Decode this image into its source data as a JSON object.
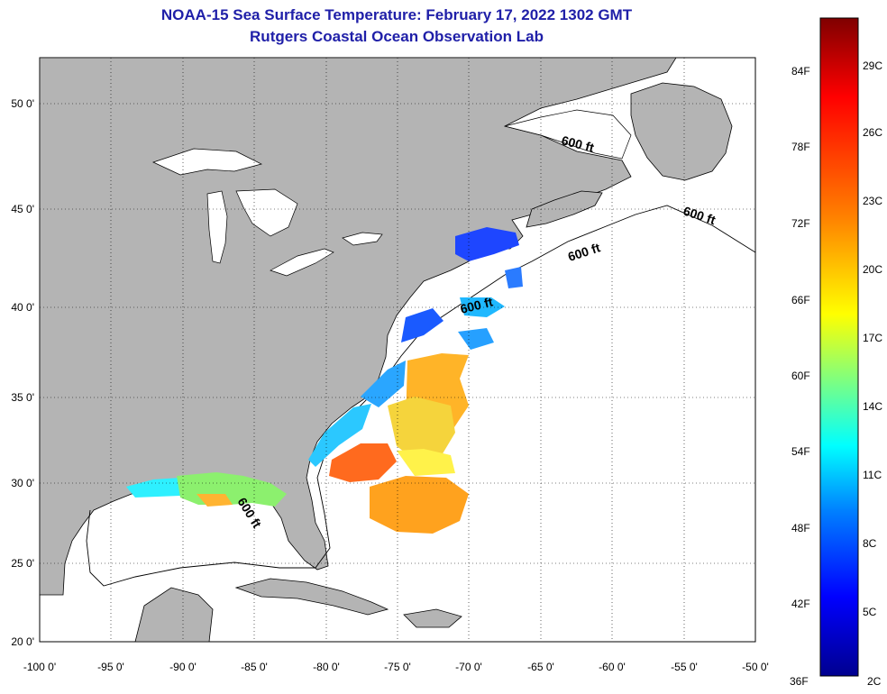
{
  "title": {
    "line1": "NOAA-15 Sea Surface Temperature:  February 17, 2022 1302 GMT",
    "line2": "Rutgers Coastal Ocean Observation Lab"
  },
  "map": {
    "lon_labels": [
      "-100 0'",
      "-95 0'",
      "-90 0'",
      "-85 0'",
      "-80 0'",
      "-75 0'",
      "-70 0'",
      "-65 0'",
      "-60 0'",
      "-55 0'",
      "-50 0'"
    ],
    "lat_labels": [
      "50 0'",
      "45 0'",
      "40 0'",
      "35 0'",
      "30 0'",
      "25 0'",
      "20 0'"
    ],
    "isobath_labels": [
      "600 ft",
      "600 ft",
      "600 ft",
      "600 ft",
      "600 ft"
    ],
    "land_color": "#b4b4b4",
    "ocean_color": "#ffffff"
  },
  "colorbar": {
    "f_labels": [
      "84F",
      "78F",
      "72F",
      "66F",
      "60F",
      "54F",
      "48F",
      "42F",
      "36F"
    ],
    "c_labels": [
      "29C",
      "26C",
      "23C",
      "20C",
      "17C",
      "14C",
      "11C",
      "8C",
      "5C",
      "2C"
    ],
    "colors": [
      "#7f0000",
      "#ff0000",
      "#ff7f00",
      "#ffff00",
      "#7fff7f",
      "#00ffff",
      "#007fff",
      "#0000ff",
      "#00008f"
    ]
  }
}
